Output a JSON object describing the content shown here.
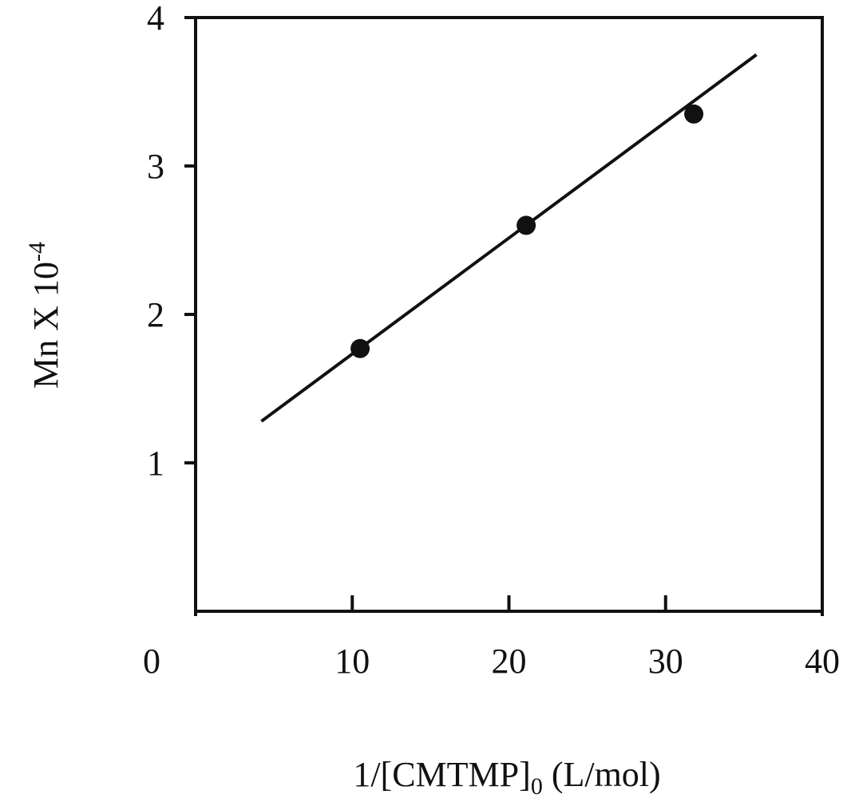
{
  "chart_data": {
    "type": "scatter",
    "x_label": {
      "text": "1/[CMTMP]",
      "subscript": "0",
      "suffix": " (L/mol)"
    },
    "y_label": {
      "text": "Mn X 10",
      "superscript": "-4"
    },
    "xlim": [
      0,
      40
    ],
    "xticks": [
      0,
      10,
      20,
      30,
      40
    ],
    "ylim": [
      0,
      4
    ],
    "yticks": [
      1,
      2,
      3,
      4
    ],
    "points": {
      "x": [
        10.5,
        21.1,
        31.8
      ],
      "y": [
        1.77,
        2.6,
        3.35
      ],
      "color": "#111111"
    },
    "fit_line": {
      "x": [
        4.2,
        35.8
      ],
      "y": [
        1.28,
        3.75
      ],
      "color": "#111111"
    }
  }
}
